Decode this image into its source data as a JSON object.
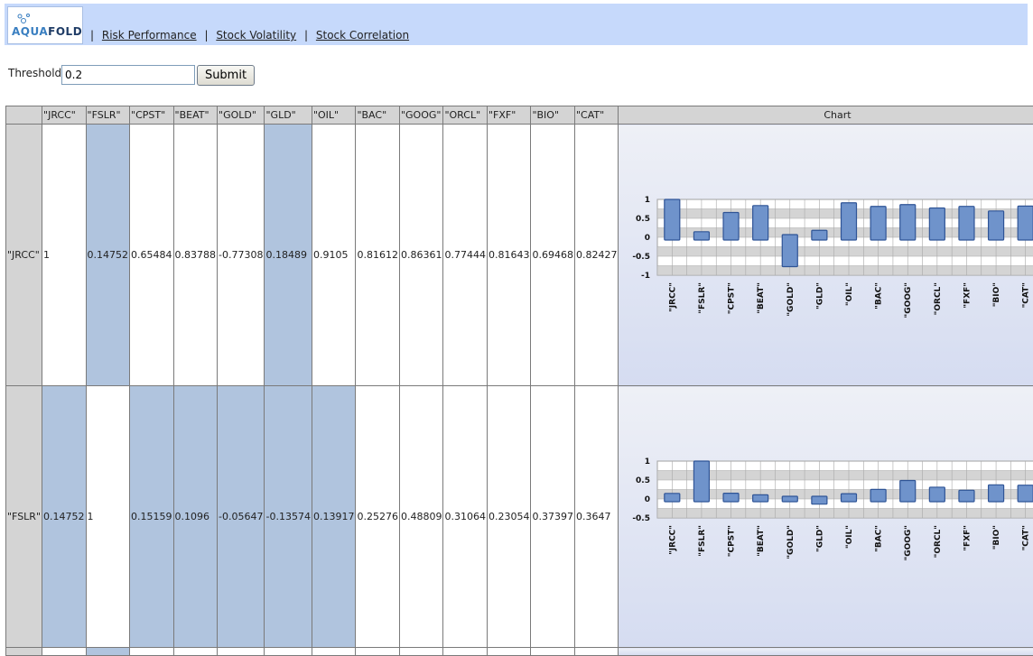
{
  "app": {
    "logo": {
      "part1": "AQUA",
      "part2": "FOLD"
    },
    "nav": [
      {
        "label": "Risk Performance"
      },
      {
        "label": "Stock Volatility"
      },
      {
        "label": "Stock Correlation"
      }
    ]
  },
  "form": {
    "threshold_label": "Threshold",
    "threshold_value": "0.2",
    "submit_label": "Submit"
  },
  "table": {
    "chart_header": "Chart",
    "columns": [
      "\"JRCC\"",
      "\"FSLR\"",
      "\"CPST\"",
      "\"BEAT\"",
      "\"GOLD\"",
      "\"GLD\"",
      "\"OIL\"",
      "\"BAC\"",
      "\"GOOG\"",
      "\"ORCL\"",
      "\"FXF\"",
      "\"BIO\"",
      "\"CAT\""
    ],
    "rows": [
      {
        "label": "\"JRCC\"",
        "values": [
          "1",
          "0.14752",
          "0.65484",
          "0.83788",
          "-0.77308",
          "0.18489",
          "0.9105",
          "0.81612",
          "0.86361",
          "0.77444",
          "0.81643",
          "0.69468",
          "0.82427"
        ],
        "highlight": [
          false,
          true,
          false,
          false,
          false,
          true,
          false,
          false,
          false,
          false,
          false,
          false,
          false
        ]
      },
      {
        "label": "\"FSLR\"",
        "values": [
          "0.14752",
          "1",
          "0.15159",
          "0.1096",
          "-0.05647",
          "-0.13574",
          "0.13917",
          "0.25276",
          "0.48809",
          "0.31064",
          "0.23054",
          "0.37397",
          "0.3647"
        ],
        "highlight": [
          true,
          false,
          true,
          true,
          true,
          true,
          true,
          false,
          false,
          false,
          false,
          false,
          false
        ]
      }
    ],
    "partial_row_highlight": [
      false,
      true,
      false,
      false,
      false,
      false,
      false,
      false,
      false,
      false,
      false,
      false,
      false
    ]
  },
  "colors": {
    "bar_fill": "#6f93cb",
    "bar_stroke": "#2f5496",
    "highlight": "#b0c4de",
    "header_bg": "#c6d9fb"
  },
  "chart_data": [
    {
      "type": "bar",
      "categories": [
        "\"JRCC\"",
        "\"FSLR\"",
        "\"CPST\"",
        "\"BEAT\"",
        "\"GOLD\"",
        "\"GLD\"",
        "\"OIL\"",
        "\"BAC\"",
        "\"GOOG\"",
        "\"ORCL\"",
        "\"FXF\"",
        "\"BIO\"",
        "\"CAT\""
      ],
      "values": [
        1,
        0.14752,
        0.65484,
        0.83788,
        -0.77308,
        0.18489,
        0.9105,
        0.81612,
        0.86361,
        0.77444,
        0.81643,
        0.69468,
        0.82427
      ],
      "yticks": [
        "1",
        "0.5",
        "0",
        "-0.5",
        "-1"
      ],
      "ylim": [
        -1,
        1
      ],
      "grid": true
    },
    {
      "type": "bar",
      "categories": [
        "\"JRCC\"",
        "\"FSLR\"",
        "\"CPST\"",
        "\"BEAT\"",
        "\"GOLD\"",
        "\"GLD\"",
        "\"OIL\"",
        "\"BAC\"",
        "\"GOOG\"",
        "\"ORCL\"",
        "\"FXF\"",
        "\"BIO\"",
        "\"CAT\""
      ],
      "values": [
        0.14752,
        1,
        0.15159,
        0.1096,
        -0.05647,
        -0.13574,
        0.13917,
        0.25276,
        0.48809,
        0.31064,
        0.23054,
        0.37397,
        0.3647
      ],
      "yticks": [
        "1",
        "0.5",
        "0",
        "-0.5"
      ],
      "ylim": [
        -0.5,
        1
      ],
      "grid": true
    }
  ]
}
